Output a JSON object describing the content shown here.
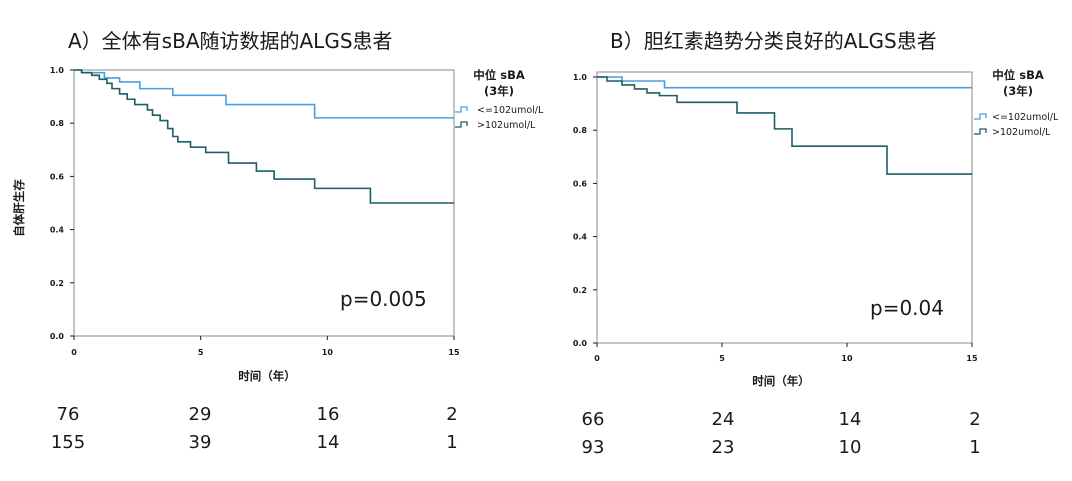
{
  "colors": {
    "low_series": "#4a9fe0",
    "high_series": "#1e5d66",
    "text": "#1a1a1a"
  },
  "chart_data": [
    {
      "type": "line",
      "step": true,
      "title": "A）全体有sBA随访数据的ALGS患者",
      "xlabel": "时间（年）",
      "ylabel": "自体肝生存",
      "xlim": [
        0,
        15
      ],
      "ylim": [
        0,
        1
      ],
      "xticks": [
        "0",
        "5",
        "10",
        "15"
      ],
      "yticks": [
        "0.0",
        "0.2",
        "0.4",
        "0.6",
        "0.8",
        "1.0"
      ],
      "legend_title_line1": "中位 sBA",
      "legend_title_line2": "(3年)",
      "legend_position": "right",
      "p_value": "p=0.005",
      "series": [
        {
          "name": "<=102umol/L",
          "x": [
            0,
            0.3,
            1.2,
            1.8,
            2.6,
            3.9,
            6.0,
            9.5,
            15
          ],
          "y": [
            1.0,
            0.99,
            0.97,
            0.955,
            0.93,
            0.905,
            0.87,
            0.82,
            0.82
          ]
        },
        {
          "name": ">102umol/L",
          "x": [
            0,
            0.3,
            0.7,
            1.0,
            1.3,
            1.5,
            1.8,
            2.1,
            2.4,
            2.9,
            3.1,
            3.4,
            3.7,
            3.9,
            4.1,
            4.6,
            5.2,
            6.1,
            7.2,
            7.9,
            9.5,
            11.7,
            15
          ],
          "y": [
            1.0,
            0.99,
            0.98,
            0.965,
            0.95,
            0.93,
            0.91,
            0.89,
            0.87,
            0.85,
            0.83,
            0.81,
            0.78,
            0.75,
            0.73,
            0.71,
            0.69,
            0.65,
            0.62,
            0.59,
            0.555,
            0.5,
            0.5
          ]
        }
      ],
      "risk_table": [
        [
          "76",
          "29",
          "16",
          "2"
        ],
        [
          "155",
          "39",
          "14",
          "1"
        ]
      ]
    },
    {
      "type": "line",
      "step": true,
      "title": "B）胆红素趋势分类良好的ALGS患者",
      "xlabel": "时间（年）",
      "xlim": [
        0,
        15
      ],
      "ylim": [
        0,
        1
      ],
      "xticks": [
        "0",
        "5",
        "10",
        "15"
      ],
      "yticks": [
        "0.0",
        "0.2",
        "0.4",
        "0.6",
        "0.8",
        "1.0"
      ],
      "legend_title_line1": "中位 sBA",
      "legend_title_line2": "(3年)",
      "legend_position": "right",
      "p_value": "p=0.04",
      "series": [
        {
          "name": "<=102umol/L",
          "x": [
            0,
            1.0,
            2.7,
            15
          ],
          "y": [
            1.0,
            0.985,
            0.96,
            0.96
          ]
        },
        {
          "name": ">102umol/L",
          "x": [
            0,
            0.4,
            1.0,
            1.5,
            2.0,
            2.5,
            3.2,
            5.6,
            7.1,
            7.8,
            11.6,
            15
          ],
          "y": [
            1.0,
            0.985,
            0.97,
            0.955,
            0.94,
            0.93,
            0.905,
            0.865,
            0.805,
            0.74,
            0.635,
            0.635
          ]
        }
      ],
      "risk_table": [
        [
          "66",
          "24",
          "14",
          "2"
        ],
        [
          "93",
          "23",
          "10",
          "1"
        ]
      ]
    }
  ]
}
